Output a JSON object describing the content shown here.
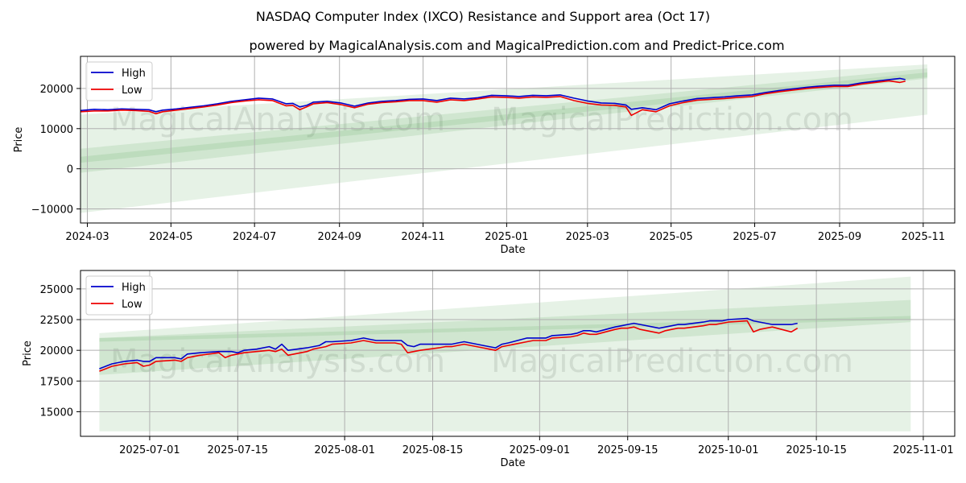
{
  "header": {
    "title": "NASDAQ Computer Index (IXCO) Resistance and Support area (Oct 17)",
    "subtitle": "powered by MagicalAnalysis.com and MagicalPrediction.com and Predict-Price.com"
  },
  "watermark": {
    "left": "MagicalAnalysis.com",
    "right": "MagicalPrediction.com"
  },
  "colors": {
    "high": "#0000cc",
    "low": "#ee0000",
    "band": "#3a9a3a"
  },
  "chart_data": [
    {
      "type": "line",
      "id": "top",
      "title": "",
      "xlabel": "Date",
      "ylabel": "Price",
      "xlim": [
        0,
        638
      ],
      "ylim": [
        -13500,
        28000
      ],
      "grid": true,
      "legend": "top-left",
      "x_ticks": [
        {
          "x": 5,
          "label": "2024-03"
        },
        {
          "x": 66,
          "label": "2024-05"
        },
        {
          "x": 127,
          "label": "2024-07"
        },
        {
          "x": 189,
          "label": "2024-09"
        },
        {
          "x": 250,
          "label": "2024-11"
        },
        {
          "x": 311,
          "label": "2025-01"
        },
        {
          "x": 370,
          "label": "2025-03"
        },
        {
          "x": 431,
          "label": "2025-05"
        },
        {
          "x": 492,
          "label": "2025-07"
        },
        {
          "x": 554,
          "label": "2025-09"
        },
        {
          "x": 615,
          "label": "2025-11"
        }
      ],
      "y_ticks": [
        {
          "y": 20000,
          "label": "20000"
        },
        {
          "y": 10000,
          "label": "10000"
        },
        {
          "y": 0,
          "label": "0"
        },
        {
          "y": -10000,
          "label": "−10000"
        }
      ],
      "bands": [
        {
          "name": "wide",
          "x": [
            0,
            618
          ],
          "upper": [
            13500,
            26000
          ],
          "lower": [
            -11000,
            13500
          ],
          "opacity": 0.13
        },
        {
          "name": "mid",
          "x": [
            0,
            618
          ],
          "upper": [
            5000,
            25000
          ],
          "lower": [
            -1000,
            22500
          ],
          "opacity": 0.13
        },
        {
          "name": "core",
          "x": [
            0,
            618
          ],
          "upper": [
            3000,
            24000
          ],
          "lower": [
            1500,
            22800
          ],
          "opacity": 0.13
        }
      ],
      "series": [
        {
          "name": "High",
          "color_key": "high",
          "x": [
            0,
            10,
            20,
            30,
            40,
            50,
            55,
            60,
            70,
            80,
            90,
            100,
            110,
            120,
            130,
            140,
            150,
            155,
            160,
            165,
            170,
            180,
            190,
            200,
            210,
            220,
            230,
            240,
            250,
            260,
            270,
            280,
            290,
            300,
            310,
            320,
            330,
            340,
            350,
            360,
            370,
            380,
            390,
            398,
            402,
            410,
            420,
            430,
            440,
            450,
            460,
            470,
            480,
            490,
            500,
            510,
            520,
            530,
            540,
            550,
            560,
            570,
            580,
            590,
            598,
            602
          ],
          "values": [
            14500,
            14800,
            14700,
            14900,
            14800,
            14700,
            14200,
            14600,
            14900,
            15300,
            15700,
            16200,
            16800,
            17200,
            17600,
            17400,
            16200,
            16300,
            15400,
            15800,
            16600,
            16800,
            16400,
            15600,
            16400,
            16800,
            17000,
            17300,
            17400,
            17000,
            17600,
            17400,
            17700,
            18300,
            18200,
            18000,
            18300,
            18200,
            18400,
            17600,
            16900,
            16400,
            16300,
            15900,
            14800,
            15200,
            14700,
            16200,
            16900,
            17500,
            17700,
            17900,
            18200,
            18400,
            19000,
            19500,
            19900,
            20300,
            20600,
            20800,
            20800,
            21400,
            21800,
            22200,
            22500,
            22200
          ]
        },
        {
          "name": "Low",
          "color_key": "low",
          "x": [
            0,
            10,
            20,
            30,
            40,
            50,
            55,
            60,
            70,
            80,
            90,
            100,
            110,
            120,
            130,
            140,
            150,
            155,
            160,
            165,
            170,
            180,
            190,
            200,
            210,
            220,
            230,
            240,
            250,
            260,
            270,
            280,
            290,
            300,
            310,
            320,
            330,
            340,
            350,
            360,
            370,
            380,
            390,
            398,
            402,
            410,
            420,
            430,
            440,
            450,
            460,
            470,
            480,
            490,
            500,
            510,
            520,
            530,
            540,
            550,
            560,
            570,
            580,
            590,
            598,
            602
          ],
          "values": [
            14200,
            14400,
            14400,
            14600,
            14500,
            14300,
            13700,
            14200,
            14600,
            15000,
            15400,
            15900,
            16500,
            16900,
            17200,
            17000,
            15700,
            15800,
            14700,
            15400,
            16200,
            16500,
            16000,
            15200,
            16100,
            16500,
            16700,
            17000,
            17000,
            16600,
            17200,
            17000,
            17400,
            17900,
            17800,
            17600,
            17900,
            17800,
            18000,
            17000,
            16300,
            15900,
            15800,
            15400,
            13300,
            14700,
            14200,
            15700,
            16500,
            17100,
            17300,
            17500,
            17800,
            18000,
            18700,
            19200,
            19600,
            20000,
            20300,
            20500,
            20500,
            21100,
            21500,
            21900,
            21500,
            21800
          ]
        }
      ]
    },
    {
      "type": "line",
      "id": "bottom",
      "title": "",
      "xlabel": "Date",
      "ylabel": "Price",
      "xlim": [
        -3,
        136
      ],
      "ylim": [
        13000,
        26500
      ],
      "grid": true,
      "legend": "top-left",
      "x_ticks": [
        {
          "x": 8,
          "label": "2025-07-01"
        },
        {
          "x": 22,
          "label": "2025-07-15"
        },
        {
          "x": 39,
          "label": "2025-08-01"
        },
        {
          "x": 53,
          "label": "2025-08-15"
        },
        {
          "x": 70,
          "label": "2025-09-01"
        },
        {
          "x": 84,
          "label": "2025-09-15"
        },
        {
          "x": 100,
          "label": "2025-10-01"
        },
        {
          "x": 114,
          "label": "2025-10-15"
        },
        {
          "x": 131,
          "label": "2025-11-01"
        }
      ],
      "y_ticks": [
        {
          "y": 25000,
          "label": "25000"
        },
        {
          "y": 22500,
          "label": "22500"
        },
        {
          "y": 20000,
          "label": "20000"
        },
        {
          "y": 17500,
          "label": "17500"
        },
        {
          "y": 15000,
          "label": "15000"
        }
      ],
      "bands": [
        {
          "name": "wide",
          "x": [
            0,
            129
          ],
          "upper": [
            21400,
            26000
          ],
          "lower": [
            13400,
            13400
          ],
          "opacity": 0.13
        },
        {
          "name": "mid",
          "x": [
            0,
            129
          ],
          "upper": [
            21000,
            24100
          ],
          "lower": [
            18000,
            22300
          ],
          "opacity": 0.13
        },
        {
          "name": "core",
          "x": [
            0,
            129
          ],
          "upper": [
            21000,
            22800
          ],
          "lower": [
            20700,
            22500
          ],
          "opacity": 0.13
        }
      ],
      "series": [
        {
          "name": "High",
          "color_key": "high",
          "x": [
            0,
            1,
            2,
            4,
            6,
            7,
            8,
            9,
            12,
            13,
            14,
            16,
            19,
            20,
            21,
            22,
            23,
            25,
            27,
            28,
            29,
            30,
            33,
            34,
            35,
            36,
            37,
            40,
            41,
            42,
            43,
            44,
            47,
            48,
            49,
            50,
            51,
            54,
            55,
            56,
            57,
            58,
            61,
            62,
            63,
            64,
            65,
            68,
            69,
            70,
            71,
            72,
            75,
            76,
            77,
            78,
            79,
            82,
            83,
            84,
            85,
            86,
            89,
            90,
            91,
            92,
            93,
            96,
            97,
            98,
            99,
            100,
            103,
            104,
            105,
            106,
            107,
            110,
            111
          ],
          "values": [
            18500,
            18700,
            18900,
            19100,
            19200,
            19100,
            19100,
            19400,
            19400,
            19300,
            19700,
            19800,
            19900,
            19900,
            19900,
            19800,
            20000,
            20100,
            20300,
            20100,
            20500,
            20000,
            20200,
            20300,
            20400,
            20700,
            20700,
            20800,
            20900,
            21000,
            20900,
            20800,
            20800,
            20800,
            20400,
            20300,
            20500,
            20500,
            20500,
            20500,
            20600,
            20700,
            20400,
            20300,
            20200,
            20500,
            20600,
            21000,
            21000,
            21000,
            21000,
            21200,
            21300,
            21400,
            21600,
            21600,
            21500,
            21900,
            22000,
            22100,
            22200,
            22100,
            21800,
            21900,
            22000,
            22100,
            22100,
            22300,
            22400,
            22400,
            22400,
            22500,
            22600,
            22400,
            22300,
            22200,
            22100,
            22100,
            22200
          ]
        },
        {
          "name": "Low",
          "color_key": "low",
          "x": [
            0,
            1,
            2,
            4,
            6,
            7,
            8,
            9,
            12,
            13,
            14,
            16,
            19,
            20,
            21,
            22,
            23,
            25,
            27,
            28,
            29,
            30,
            33,
            34,
            35,
            36,
            37,
            40,
            41,
            42,
            43,
            44,
            47,
            48,
            49,
            50,
            51,
            54,
            55,
            56,
            57,
            58,
            61,
            62,
            63,
            64,
            65,
            68,
            69,
            70,
            71,
            72,
            75,
            76,
            77,
            78,
            79,
            82,
            83,
            84,
            85,
            86,
            89,
            90,
            91,
            92,
            93,
            96,
            97,
            98,
            99,
            100,
            103,
            104,
            105,
            106,
            107,
            110,
            111
          ],
          "values": [
            18300,
            18500,
            18700,
            18900,
            19000,
            18700,
            18800,
            19100,
            19200,
            19100,
            19400,
            19600,
            19800,
            19400,
            19600,
            19700,
            19800,
            19900,
            20000,
            19900,
            20100,
            19600,
            19900,
            20100,
            20200,
            20300,
            20500,
            20600,
            20700,
            20800,
            20700,
            20600,
            20600,
            20500,
            19800,
            19900,
            20000,
            20200,
            20300,
            20300,
            20400,
            20500,
            20200,
            20100,
            20000,
            20300,
            20400,
            20700,
            20800,
            20800,
            20800,
            21000,
            21100,
            21200,
            21400,
            21300,
            21300,
            21700,
            21800,
            21800,
            21900,
            21700,
            21400,
            21600,
            21700,
            21800,
            21800,
            22000,
            22100,
            22100,
            22200,
            22300,
            22400,
            21500,
            21700,
            21800,
            21900,
            21500,
            21800
          ]
        }
      ]
    }
  ]
}
